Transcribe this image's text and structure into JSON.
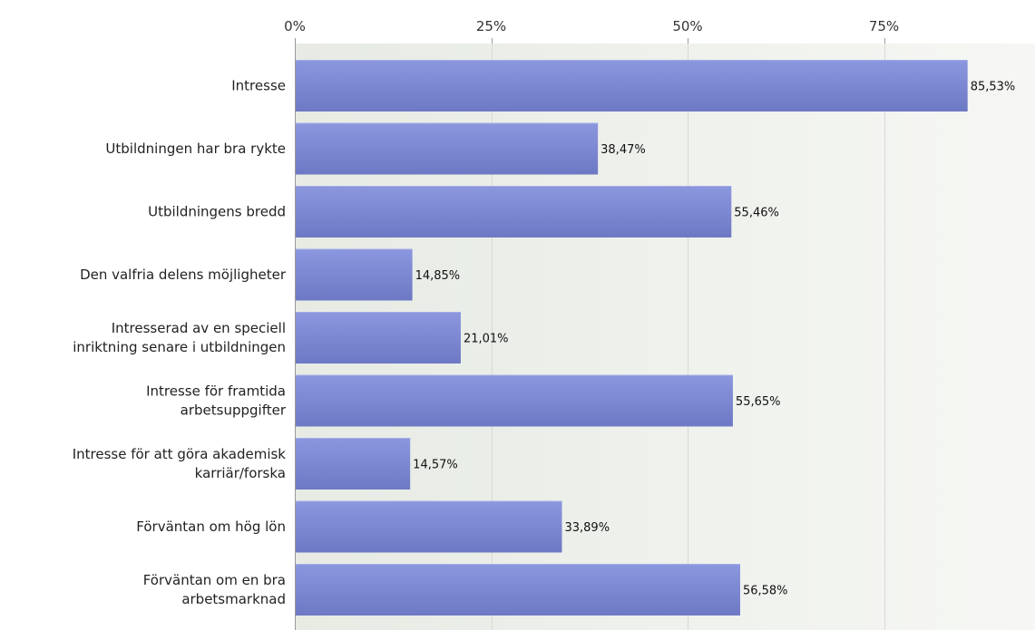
{
  "chart_data": {
    "type": "bar",
    "orientation": "horizontal",
    "categories": [
      [
        "Intresse"
      ],
      [
        "Utbildningen har bra rykte"
      ],
      [
        "Utbildningens bredd"
      ],
      [
        "Den valfria delens möjligheter"
      ],
      [
        "Intresserad av en speciell",
        "inriktning senare i utbildningen"
      ],
      [
        "Intresse för framtida",
        "arbetsuppgifter"
      ],
      [
        "Intresse för att göra akademisk",
        "karriär/forska"
      ],
      [
        "Förväntan om hög lön"
      ],
      [
        "Förväntan om en bra",
        "arbetsmarknad"
      ]
    ],
    "values": [
      85.53,
      38.47,
      55.46,
      14.85,
      21.01,
      55.65,
      14.57,
      33.89,
      56.58
    ],
    "value_labels": [
      "85,53%",
      "38,47%",
      "55,46%",
      "14,85%",
      "21,01%",
      "55,65%",
      "14,57%",
      "33,89%",
      "56,58%"
    ],
    "x_ticks": [
      0,
      25,
      50,
      75
    ],
    "x_tick_labels": [
      "0%",
      "25%",
      "50%",
      "75%"
    ],
    "xlim": [
      0,
      95
    ],
    "axis_position": "top",
    "grid": true,
    "bar_color": "#7b87d2",
    "plot_background": "#eef1ec",
    "gridline_color": "#d6dad2"
  }
}
